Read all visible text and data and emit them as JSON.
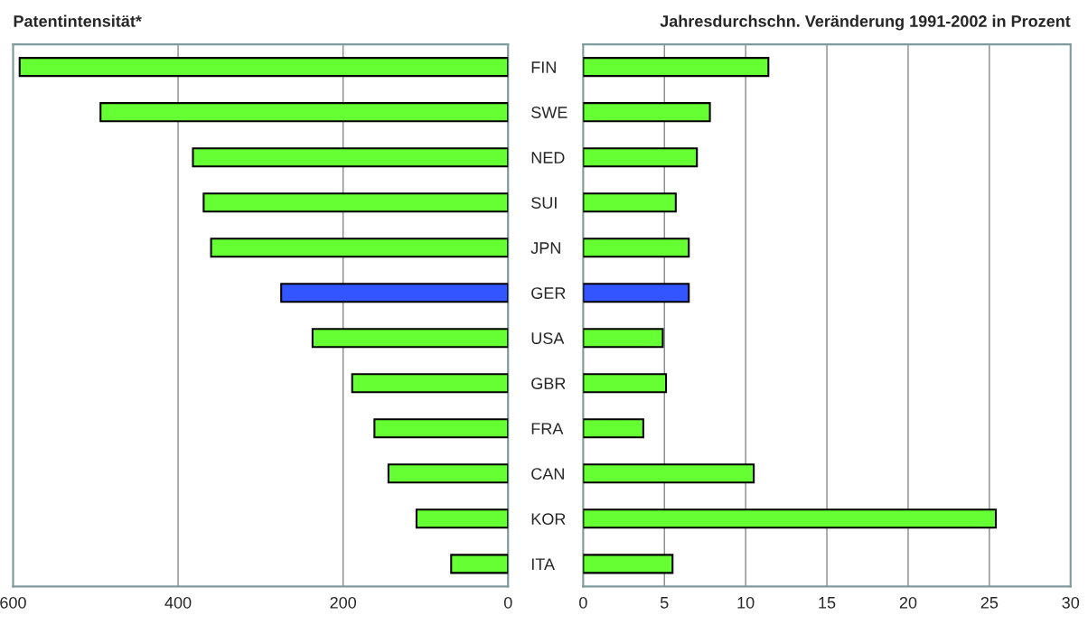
{
  "chart_data": [
    {
      "type": "bar",
      "orientation": "horizontal",
      "title": "Patentintensität*",
      "categories": [
        "FIN",
        "SWE",
        "NED",
        "SUI",
        "JPN",
        "GER",
        "USA",
        "GBR",
        "FRA",
        "CAN",
        "KOR",
        "ITA"
      ],
      "values": [
        592,
        494,
        382,
        369,
        360,
        275,
        237,
        189,
        162,
        145,
        111,
        69
      ],
      "colors": [
        "#66ff33",
        "#66ff33",
        "#66ff33",
        "#66ff33",
        "#66ff33",
        "#3355ff",
        "#66ff33",
        "#66ff33",
        "#66ff33",
        "#66ff33",
        "#66ff33",
        "#66ff33"
      ],
      "xlim": [
        600,
        0
      ],
      "xticks": [
        600,
        400,
        200,
        0
      ],
      "grid": "x",
      "legend": false
    },
    {
      "type": "bar",
      "orientation": "horizontal",
      "title": "Jahresdurchschn. Veränderung 1991-2002 in Prozent",
      "categories": [
        null,
        null,
        null,
        null,
        null,
        null,
        null,
        null,
        null,
        null,
        null,
        null
      ],
      "values": [
        11.4,
        7.8,
        7.0,
        5.7,
        6.5,
        6.5,
        4.9,
        5.1,
        3.7,
        10.5,
        25.4,
        5.5
      ],
      "colors": [
        "#66ff33",
        "#66ff33",
        "#66ff33",
        "#66ff33",
        "#66ff33",
        "#3355ff",
        "#66ff33",
        "#66ff33",
        "#66ff33",
        "#66ff33",
        "#66ff33",
        "#66ff33"
      ],
      "xlim": [
        0,
        30
      ],
      "xticks": [
        0,
        5,
        10,
        15,
        20,
        25,
        30
      ],
      "grid": "x",
      "legend": false
    }
  ]
}
